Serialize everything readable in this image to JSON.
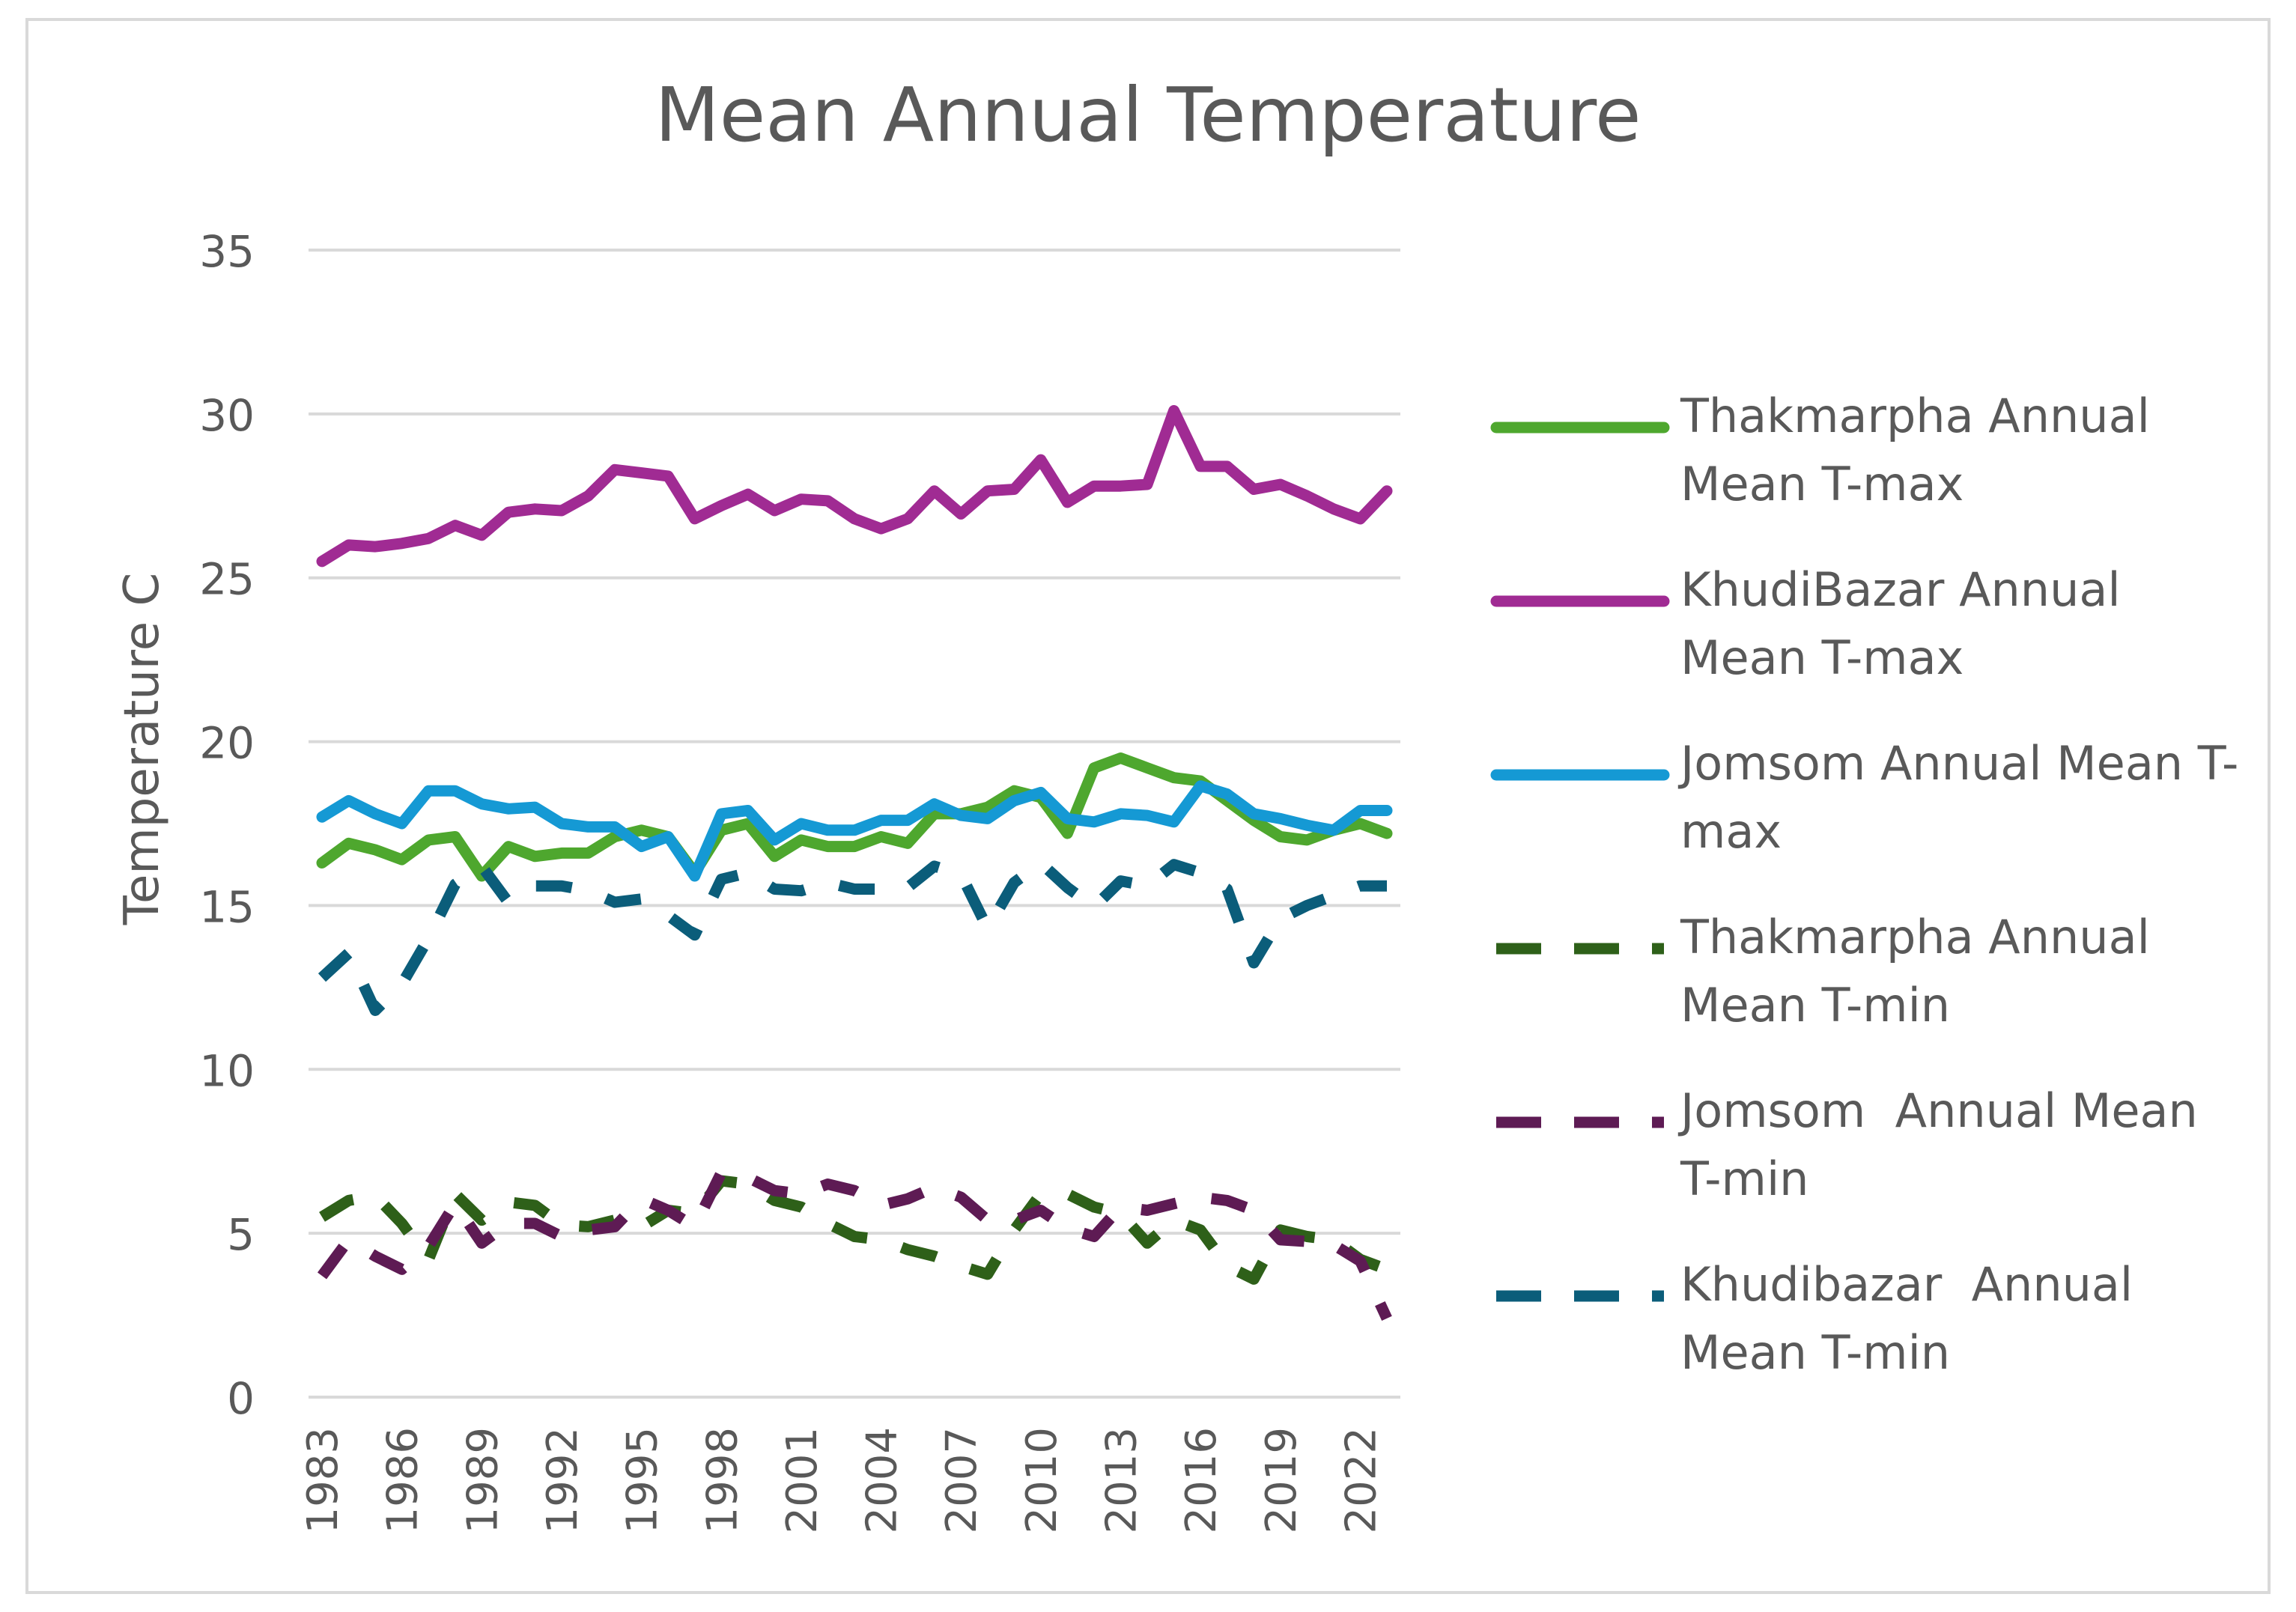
{
  "chart_data": {
    "type": "line",
    "title": "Mean Annual Temperature",
    "xlabel": "",
    "ylabel": "Temperature C",
    "ylim": [
      0,
      35
    ],
    "yticks": [
      0,
      5,
      10,
      15,
      20,
      25,
      30,
      35
    ],
    "xticks": [
      1983,
      1986,
      1989,
      1992,
      1995,
      1998,
      2001,
      2004,
      2007,
      2010,
      2013,
      2016,
      2019,
      2022
    ],
    "x": [
      1983,
      1984,
      1985,
      1986,
      1987,
      1988,
      1989,
      1990,
      1991,
      1992,
      1993,
      1994,
      1995,
      1996,
      1997,
      1998,
      1999,
      2000,
      2001,
      2002,
      2003,
      2004,
      2005,
      2006,
      2007,
      2008,
      2009,
      2010,
      2011,
      2012,
      2013,
      2014,
      2015,
      2016,
      2017,
      2018,
      2019,
      2020,
      2021,
      2022,
      2023
    ],
    "grid": true,
    "legend_position": "right",
    "series": [
      {
        "name": "Thakmarpha Annual Mean T-max",
        "color": "#4ea72e",
        "dash": "solid",
        "values": [
          16.3,
          16.9,
          16.7,
          16.4,
          17.0,
          17.1,
          15.9,
          16.8,
          16.5,
          16.6,
          16.6,
          17.1,
          17.3,
          17.1,
          16.0,
          17.3,
          17.5,
          16.5,
          17.0,
          16.8,
          16.8,
          17.1,
          16.9,
          17.8,
          17.8,
          18.0,
          18.5,
          18.3,
          17.2,
          19.2,
          19.5,
          19.2,
          18.9,
          18.8,
          18.2,
          17.6,
          17.1,
          17.0,
          17.3,
          17.5,
          17.2
        ]
      },
      {
        "name": "KhudiBazar Annual Mean T-max",
        "color": "#a02b93",
        "dash": "solid",
        "values": [
          25.5,
          26.0,
          25.95,
          26.05,
          26.2,
          26.6,
          26.3,
          27.0,
          27.1,
          27.05,
          27.5,
          28.3,
          28.2,
          28.1,
          26.8,
          27.2,
          27.55,
          27.05,
          27.4,
          27.35,
          26.8,
          26.5,
          26.8,
          27.65,
          26.95,
          27.65,
          27.7,
          28.6,
          27.3,
          27.8,
          27.8,
          27.85,
          30.1,
          28.4,
          28.4,
          27.7,
          27.85,
          27.5,
          27.1,
          26.8,
          27.65
        ]
      },
      {
        "name": "Jomsom Annual Mean T-max",
        "color": "#1599d4",
        "dash": "solid",
        "values": [
          17.7,
          18.2,
          17.8,
          17.5,
          18.5,
          18.5,
          18.1,
          17.95,
          18.0,
          17.5,
          17.4,
          17.4,
          16.8,
          17.1,
          15.9,
          17.8,
          17.9,
          17.0,
          17.5,
          17.3,
          17.3,
          17.6,
          17.6,
          18.1,
          17.75,
          17.65,
          18.2,
          18.45,
          17.65,
          17.55,
          17.8,
          17.75,
          17.55,
          18.65,
          18.4,
          17.8,
          17.65,
          17.45,
          17.3,
          17.9,
          17.9
        ]
      },
      {
        "name": "Thakmarpha Annual Mean T-min",
        "color": "#2e6019",
        "dash": "dashed",
        "values": [
          5.5,
          6.0,
          6.15,
          5.3,
          4.2,
          6.2,
          5.4,
          5.95,
          5.85,
          5.25,
          5.2,
          5.4,
          5.2,
          5.7,
          5.6,
          6.6,
          6.5,
          6.0,
          5.8,
          5.3,
          4.9,
          4.8,
          4.5,
          4.3,
          4.0,
          3.75,
          5.1,
          6.2,
          6.2,
          5.8,
          5.6,
          4.7,
          5.4,
          5.1,
          4.0,
          3.6,
          5.1,
          4.9,
          4.8,
          4.2,
          3.9
        ]
      },
      {
        "name": "Jomsom  Annual Mean T-min",
        "color": "#5e1b54",
        "dash": "dashed",
        "values": [
          3.7,
          4.8,
          4.3,
          3.9,
          4.6,
          5.9,
          4.7,
          5.3,
          5.3,
          4.9,
          5.1,
          5.2,
          6.05,
          5.7,
          5.2,
          6.85,
          6.7,
          6.3,
          6.2,
          6.5,
          6.3,
          5.85,
          6.05,
          6.4,
          6.1,
          5.4,
          5.4,
          5.7,
          5.15,
          4.9,
          5.8,
          5.7,
          5.9,
          6.1,
          6.0,
          5.7,
          4.8,
          4.75,
          4.65,
          4.15,
          2.4
        ]
      },
      {
        "name": "Khudibazar  Annual Mean T-min",
        "color": "#0b5d7a",
        "dash": "dashed",
        "values": [
          12.8,
          13.55,
          11.8,
          12.6,
          14.0,
          15.65,
          16.2,
          15.1,
          15.6,
          15.6,
          15.45,
          15.1,
          15.2,
          14.7,
          14.1,
          15.8,
          16.0,
          15.5,
          15.45,
          15.7,
          15.5,
          15.5,
          15.55,
          16.2,
          15.95,
          14.3,
          15.7,
          16.3,
          15.55,
          14.95,
          15.75,
          15.6,
          16.25,
          16.0,
          15.5,
          13.25,
          14.6,
          15.0,
          15.3,
          15.6,
          15.6
        ]
      }
    ]
  }
}
